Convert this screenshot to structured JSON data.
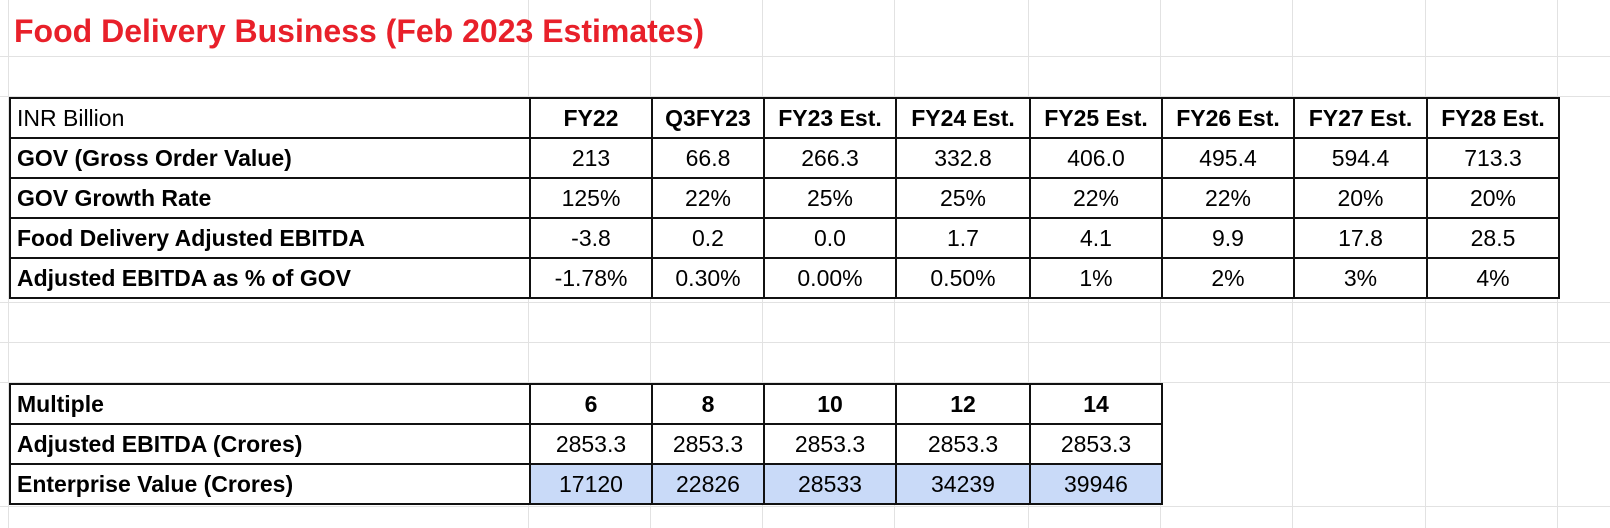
{
  "title": "Food Delivery Business (Feb 2023 Estimates)",
  "table1": {
    "header": [
      "INR Billion",
      "FY22",
      "Q3FY23",
      "FY23 Est.",
      "FY24 Est.",
      "FY25 Est.",
      "FY26 Est.",
      "FY27 Est.",
      "FY28 Est."
    ],
    "rows": [
      [
        "GOV (Gross Order Value)",
        "213",
        "66.8",
        "266.3",
        "332.8",
        "406.0",
        "495.4",
        "594.4",
        "713.3"
      ],
      [
        "GOV Growth Rate",
        "125%",
        "22%",
        "25%",
        "25%",
        "22%",
        "22%",
        "20%",
        "20%"
      ],
      [
        "Food Delivery Adjusted EBITDA",
        "-3.8",
        "0.2",
        "0.0",
        "1.7",
        "4.1",
        "9.9",
        "17.8",
        "28.5"
      ],
      [
        "Adjusted EBITDA as % of GOV",
        "-1.78%",
        "0.30%",
        "0.00%",
        "0.50%",
        "1%",
        "2%",
        "3%",
        "4%"
      ]
    ]
  },
  "table2": {
    "header": [
      "Multiple",
      "6",
      "8",
      "10",
      "12",
      "14"
    ],
    "rows": [
      [
        "Adjusted EBITDA (Crores)",
        "2853.3",
        "2853.3",
        "2853.3",
        "2853.3",
        "2853.3"
      ],
      [
        "Enterprise Value (Crores)",
        "17120",
        "22826",
        "28533",
        "34239",
        "39946"
      ]
    ]
  },
  "colors": {
    "title": "#e8202a",
    "highlight": "#c9daf8",
    "border": "#111111",
    "gridline": "#e2e2e2"
  }
}
